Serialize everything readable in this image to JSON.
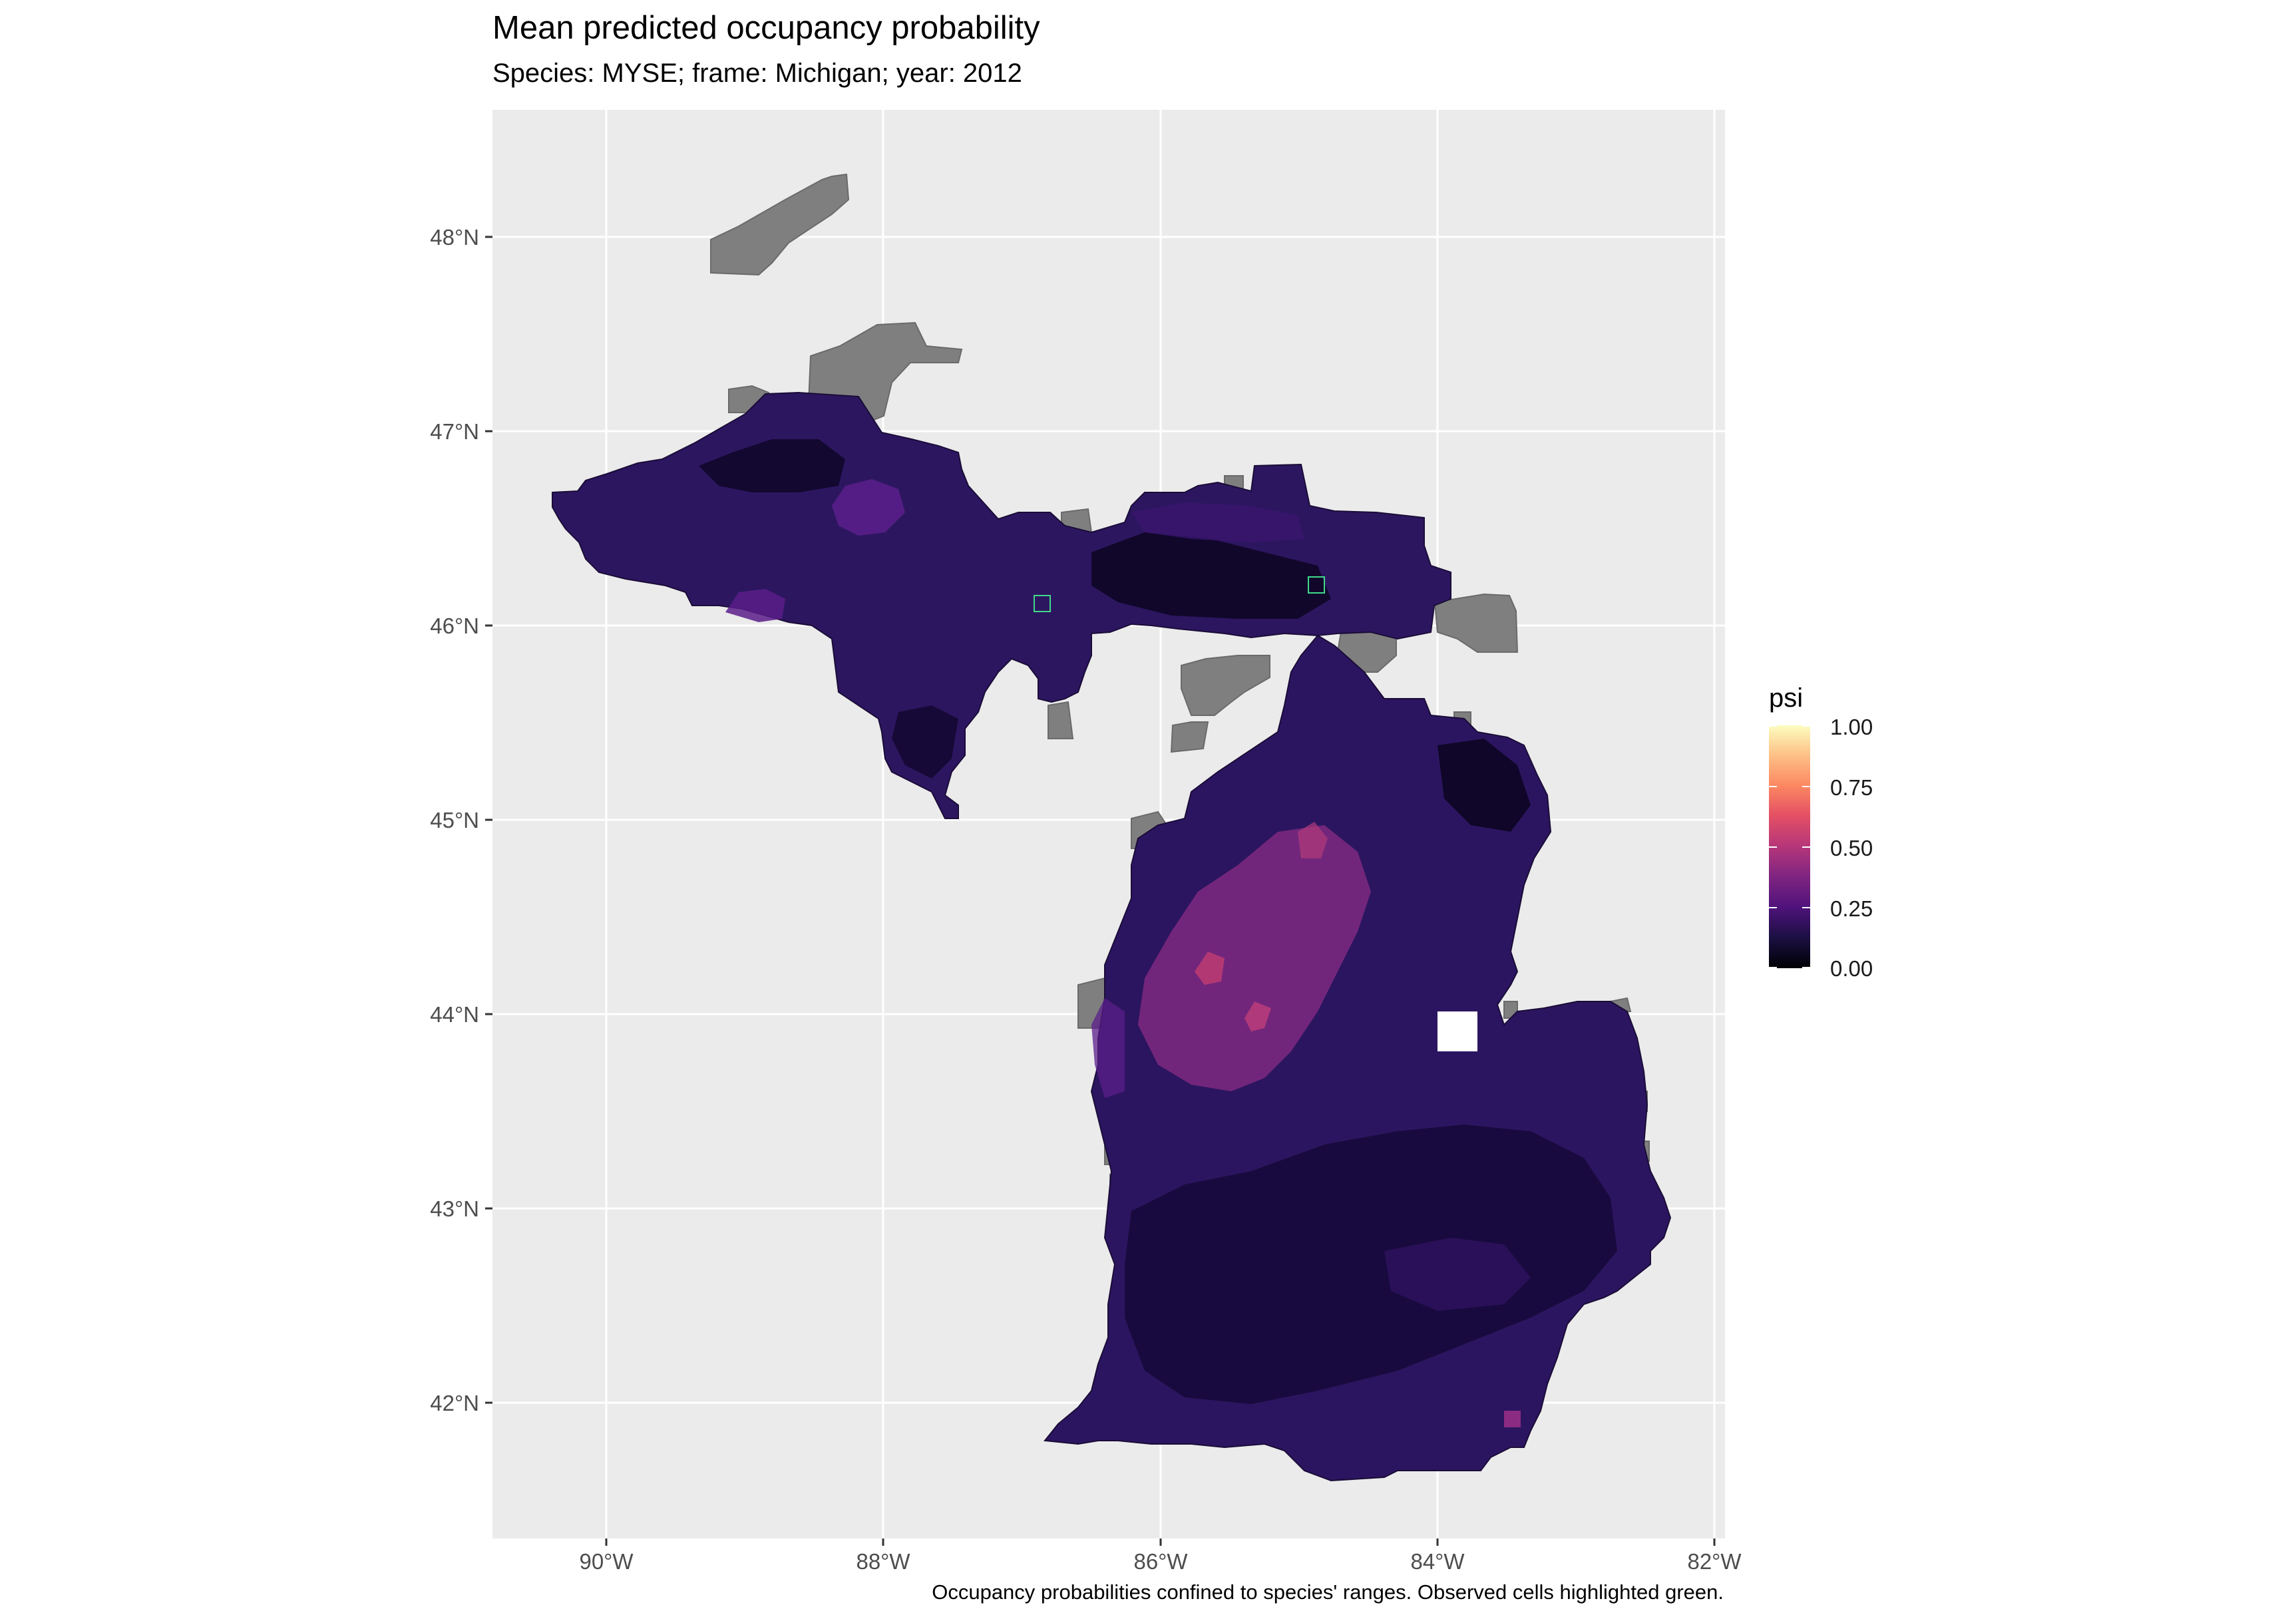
{
  "title": "Mean predicted occupancy probability",
  "subtitle": "Species: MYSE; frame: Michigan; year: 2012",
  "caption": "Occupancy probabilities confined to species' ranges. Observed cells highlighted green.",
  "legend": {
    "title": "psi",
    "labels": [
      "1.00",
      "0.75",
      "0.50",
      "0.25",
      "0.00"
    ],
    "colormap": "magma"
  },
  "axes": {
    "x_ticks": [
      "90°W",
      "88°W",
      "86°W",
      "84°W",
      "82°W"
    ],
    "y_ticks": [
      "48°N",
      "47°N",
      "46°N",
      "45°N",
      "44°N",
      "43°N",
      "42°N"
    ]
  },
  "colors": {
    "panel": "#ebebeb",
    "grid": "#ffffff",
    "outside_range": "#7f7f7f",
    "observed_outline": "#3fd98a"
  },
  "observed_cells": [
    "46.1N 86.8W",
    "46.2N 84.8W"
  ]
}
